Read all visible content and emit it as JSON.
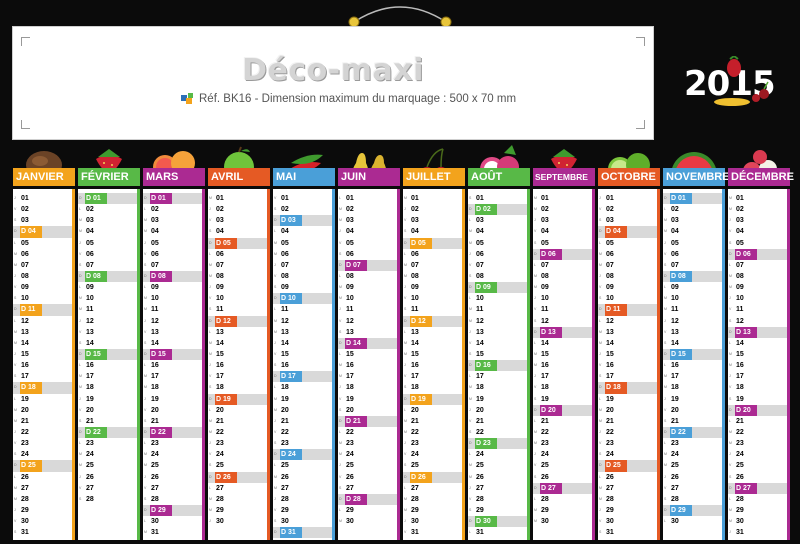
{
  "header": {
    "title": "Déco-maxi",
    "reference": "Réf. BK16 - Dimension maximum du marquage : 500 x 70 mm"
  },
  "year": "2015",
  "months": [
    {
      "name": "JANVIER",
      "color": "#f3a31c",
      "start": 3,
      "days": 31,
      "fruit": "coconut-icon"
    },
    {
      "name": "FÉVRIER",
      "color": "#58b947",
      "start": 6,
      "days": 28,
      "fruit": "strawberry-icon"
    },
    {
      "name": "MARS",
      "color": "#ab2a92",
      "start": 6,
      "days": 31,
      "fruit": "grapefruit-icon"
    },
    {
      "name": "AVRIL",
      "color": "#e55a24",
      "start": 2,
      "days": 30,
      "fruit": "apple-icon"
    },
    {
      "name": "MAI",
      "color": "#4a9fd8",
      "start": 4,
      "days": 31,
      "fruit": "peppers-icon"
    },
    {
      "name": "JUIN",
      "color": "#ab2a92",
      "start": 0,
      "days": 30,
      "fruit": "pears-icon"
    },
    {
      "name": "JUILLET",
      "color": "#f3a31c",
      "start": 2,
      "days": 31,
      "fruit": "cherry-icon"
    },
    {
      "name": "AOÛT",
      "color": "#58b947",
      "start": 5,
      "days": 31,
      "fruit": "dragonfruit-icon"
    },
    {
      "name": "SEPTEMBRE",
      "color": "#ab2a92",
      "start": 1,
      "days": 30,
      "fruit": "strawberry-icon"
    },
    {
      "name": "OCTOBRE",
      "color": "#e55a24",
      "start": 3,
      "days": 31,
      "fruit": "lime-icon"
    },
    {
      "name": "NOVEMBRE",
      "color": "#4a9fd8",
      "start": 6,
      "days": 30,
      "fruit": "watermelon-icon"
    },
    {
      "name": "DÉCEMBRE",
      "color": "#ab2a92",
      "start": 1,
      "days": 31,
      "fruit": "lychee-icon"
    }
  ],
  "colors": {
    "background": "#0b0b0b",
    "sunday_row": "#d9d9d9"
  }
}
